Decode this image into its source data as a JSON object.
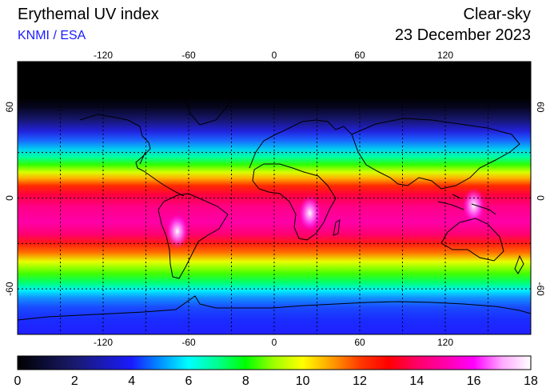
{
  "title": "Erythemal UV index",
  "credit": "KNMI / ESA",
  "mode": "Clear-sky",
  "date": "23 December 2023",
  "map": {
    "lon_ticks": [
      "-120",
      "-60",
      "0",
      "60",
      "120"
    ],
    "lat_ticks": [
      "60",
      "0",
      "-60"
    ],
    "lon_values": [
      -120,
      -60,
      0,
      60,
      120
    ],
    "lat_values": [
      60,
      0,
      -60
    ],
    "grid_lon_step": 30,
    "grid_lat_step": 30
  },
  "colorbar": {
    "labels": [
      "0",
      "2",
      "4",
      "6",
      "8",
      "10",
      "12",
      "14",
      "16",
      "18"
    ],
    "min": 0,
    "max": 18,
    "stops": [
      {
        "v": 0,
        "c": "#000000"
      },
      {
        "v": 2,
        "c": "#1a1a6e"
      },
      {
        "v": 4,
        "c": "#1a1aff"
      },
      {
        "v": 5,
        "c": "#0090ff"
      },
      {
        "v": 6,
        "c": "#00ffff"
      },
      {
        "v": 7,
        "c": "#00ff90"
      },
      {
        "v": 8,
        "c": "#00ff00"
      },
      {
        "v": 9,
        "c": "#a0ff00"
      },
      {
        "v": 10,
        "c": "#ffff00"
      },
      {
        "v": 11,
        "c": "#ffa000"
      },
      {
        "v": 12,
        "c": "#ff3a00"
      },
      {
        "v": 13,
        "c": "#ff0000"
      },
      {
        "v": 14,
        "c": "#ff0066"
      },
      {
        "v": 15,
        "c": "#ff00aa"
      },
      {
        "v": 16,
        "c": "#ff00ff"
      },
      {
        "v": 17,
        "c": "#ffaaff"
      },
      {
        "v": 18,
        "c": "#ffffff"
      }
    ]
  },
  "latitude_profile": [
    {
      "lat": 90,
      "c": "#000000"
    },
    {
      "lat": 66,
      "c": "#000000"
    },
    {
      "lat": 60,
      "c": "#060620"
    },
    {
      "lat": 52,
      "c": "#16166a"
    },
    {
      "lat": 44,
      "c": "#2222dd"
    },
    {
      "lat": 38,
      "c": "#1a66ff"
    },
    {
      "lat": 32,
      "c": "#00d0f0"
    },
    {
      "lat": 27,
      "c": "#00ffa0"
    },
    {
      "lat": 22,
      "c": "#30ff00"
    },
    {
      "lat": 17,
      "c": "#d8ff00"
    },
    {
      "lat": 13,
      "c": "#ffb000"
    },
    {
      "lat": 8,
      "c": "#ff2a00"
    },
    {
      "lat": 2,
      "c": "#ff0040"
    },
    {
      "lat": -6,
      "c": "#ff0088"
    },
    {
      "lat": -16,
      "c": "#ff00a8"
    },
    {
      "lat": -24,
      "c": "#ff0070"
    },
    {
      "lat": -30,
      "c": "#ff1a10"
    },
    {
      "lat": -36,
      "c": "#ff7000"
    },
    {
      "lat": -42,
      "c": "#e8ff00"
    },
    {
      "lat": -50,
      "c": "#40ff00"
    },
    {
      "lat": -56,
      "c": "#00ff70"
    },
    {
      "lat": -61,
      "c": "#00f0ff"
    },
    {
      "lat": -66,
      "c": "#1090ff"
    },
    {
      "lat": -72,
      "c": "#1a4cff"
    },
    {
      "lat": -80,
      "c": "#1a2cff"
    },
    {
      "lat": -90,
      "c": "#2020ff"
    }
  ],
  "hotspots": [
    {
      "name": "andes",
      "lon": -68,
      "lat": -22,
      "val": 17.5
    },
    {
      "name": "southern-africa",
      "lon": 25,
      "lat": -10,
      "val": 16.5
    },
    {
      "name": "new-guinea",
      "lon": 140,
      "lat": -5,
      "val": 16
    }
  ]
}
